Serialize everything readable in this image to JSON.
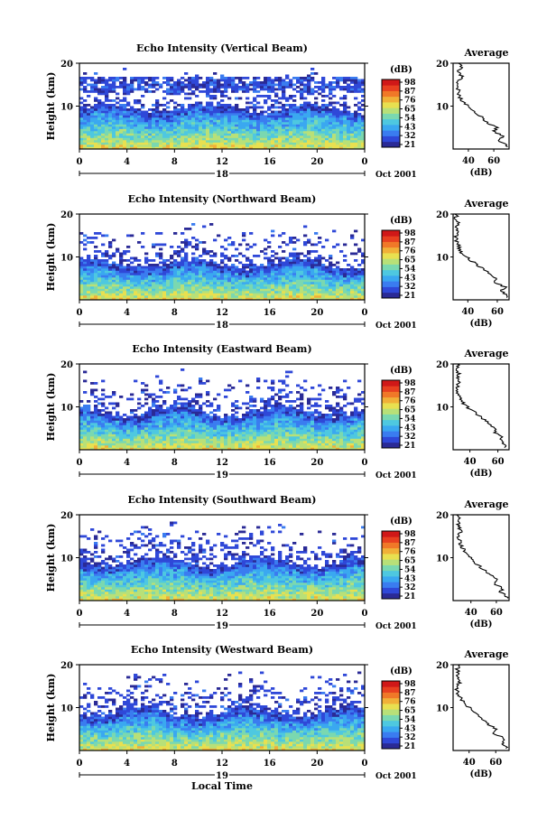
{
  "chart_data": [
    {
      "type": "heatmap",
      "title": "Echo Intensity (Vertical Beam)",
      "ylabel": "Height (km)",
      "yticks": [
        "20",
        "10"
      ],
      "ylim": [
        0,
        20
      ],
      "xticks": [
        "0",
        "4",
        "8",
        "12",
        "16",
        "20",
        "0"
      ],
      "xlim": [
        0,
        24
      ],
      "date_day": "18",
      "date_month_year": "Oct 2001",
      "colorbar": {
        "unit": "(dB)",
        "labels": [
          "98",
          "87",
          "76",
          "65",
          "54",
          "43",
          "32",
          "21"
        ]
      },
      "layers": {
        "cloud_top_km": 20,
        "dense_top_km": 9.5,
        "mid_layer_km": [
          13,
          17
        ]
      },
      "profile": {
        "title": "Average",
        "xlabel": "(dB)",
        "xticks": [
          "40",
          "60"
        ],
        "xlim": [
          28,
          72
        ],
        "heights": [
          1,
          2,
          3,
          4,
          5,
          6,
          7,
          8,
          9,
          10,
          11,
          12,
          13,
          14,
          15,
          16,
          17,
          18,
          19,
          20
        ],
        "values": [
          70,
          64,
          68,
          60,
          62,
          56,
          52,
          48,
          44,
          40,
          36,
          33,
          32,
          32,
          31,
          33,
          35,
          32,
          34,
          33
        ]
      }
    },
    {
      "type": "heatmap",
      "title": "Echo Intensity (Northward Beam)",
      "ylabel": "Height (km)",
      "yticks": [
        "20",
        "10"
      ],
      "ylim": [
        0,
        20
      ],
      "xticks": [
        "0",
        "4",
        "8",
        "12",
        "16",
        "20",
        "0"
      ],
      "xlim": [
        0,
        24
      ],
      "date_day": "18",
      "date_month_year": "Oct 2001",
      "colorbar": {
        "unit": "(dB)",
        "labels": [
          "98",
          "87",
          "76",
          "65",
          "54",
          "43",
          "32",
          "21"
        ]
      },
      "layers": {
        "cloud_top_km": 18,
        "dense_top_km": 8.5,
        "mid_layer_km": null
      },
      "profile": {
        "title": "Average",
        "xlabel": "(dB)",
        "xticks": [
          "40",
          "60"
        ],
        "xlim": [
          30,
          68
        ],
        "heights": [
          1,
          2,
          3,
          4,
          5,
          6,
          7,
          8,
          9,
          10,
          11,
          12,
          13,
          14,
          15,
          16,
          17,
          18,
          19,
          20
        ],
        "values": [
          66,
          63,
          65,
          59,
          60,
          55,
          51,
          47,
          43,
          39,
          36,
          34,
          33,
          32,
          32,
          33,
          32,
          33,
          32,
          32
        ]
      }
    },
    {
      "type": "heatmap",
      "title": "Echo Intensity (Eastward Beam)",
      "ylabel": "Height (km)",
      "yticks": [
        "20",
        "10"
      ],
      "ylim": [
        0,
        20
      ],
      "xticks": [
        "0",
        "4",
        "8",
        "12",
        "16",
        "20",
        "0"
      ],
      "xlim": [
        0,
        24
      ],
      "date_day": "19",
      "date_month_year": "Oct 2001",
      "colorbar": {
        "unit": "(dB)",
        "labels": [
          "98",
          "87",
          "76",
          "65",
          "54",
          "43",
          "32",
          "21"
        ]
      },
      "layers": {
        "cloud_top_km": 19,
        "dense_top_km": 9,
        "mid_layer_km": null
      },
      "profile": {
        "title": "Average",
        "xlabel": "(dB)",
        "xticks": [
          "40",
          "60"
        ],
        "xlim": [
          28,
          68
        ],
        "heights": [
          1,
          2,
          3,
          4,
          5,
          6,
          7,
          8,
          9,
          10,
          11,
          12,
          13,
          14,
          15,
          16,
          17,
          18,
          19,
          20
        ],
        "values": [
          66,
          62,
          64,
          58,
          59,
          54,
          50,
          46,
          42,
          38,
          35,
          33,
          32,
          31,
          31,
          32,
          31,
          32,
          31,
          32
        ]
      }
    },
    {
      "type": "heatmap",
      "title": "Echo Intensity (Southward Beam)",
      "ylabel": "Height (km)",
      "yticks": [
        "20",
        "10"
      ],
      "ylim": [
        0,
        20
      ],
      "xticks": [
        "0",
        "4",
        "8",
        "12",
        "16",
        "20",
        "0"
      ],
      "xlim": [
        0,
        24
      ],
      "date_day": "19",
      "date_month_year": "Oct 2001",
      "colorbar": {
        "unit": "(dB)",
        "labels": [
          "98",
          "87",
          "76",
          "65",
          "54",
          "43",
          "32",
          "21"
        ]
      },
      "layers": {
        "cloud_top_km": 19,
        "dense_top_km": 9,
        "mid_layer_km": null
      },
      "profile": {
        "title": "Average",
        "xlabel": "(dB)",
        "xticks": [
          "40",
          "60"
        ],
        "xlim": [
          26,
          70
        ],
        "heights": [
          1,
          2,
          3,
          4,
          5,
          6,
          7,
          8,
          9,
          10,
          11,
          12,
          13,
          14,
          15,
          16,
          17,
          18,
          19,
          20
        ],
        "values": [
          68,
          63,
          65,
          58,
          60,
          55,
          51,
          47,
          43,
          40,
          37,
          34,
          32,
          31,
          30,
          32,
          31,
          30,
          31,
          30
        ]
      }
    },
    {
      "type": "heatmap",
      "title": "Echo Intensity (Westward Beam)",
      "ylabel": "Height (km)",
      "yticks": [
        "20",
        "10"
      ],
      "ylim": [
        0,
        20
      ],
      "xticks": [
        "0",
        "4",
        "8",
        "12",
        "16",
        "20",
        "0"
      ],
      "xlim": [
        0,
        24
      ],
      "xlabel": "Local Time",
      "date_day": "19",
      "date_month_year": "Oct 2001",
      "colorbar": {
        "unit": "(dB)",
        "labels": [
          "98",
          "87",
          "76",
          "65",
          "54",
          "43",
          "32",
          "21"
        ]
      },
      "layers": {
        "cloud_top_km": 19,
        "dense_top_km": 9,
        "mid_layer_km": null
      },
      "profile": {
        "title": "Average",
        "xlabel": "(dB)",
        "xticks": [
          "40",
          "60"
        ],
        "xlim": [
          28,
          70
        ],
        "heights": [
          1,
          2,
          3,
          4,
          5,
          6,
          7,
          8,
          9,
          10,
          11,
          12,
          13,
          14,
          15,
          16,
          17,
          18,
          19,
          20
        ],
        "values": [
          68,
          64,
          66,
          59,
          60,
          55,
          51,
          47,
          43,
          40,
          36,
          34,
          32,
          31,
          31,
          33,
          31,
          32,
          31,
          33
        ]
      }
    }
  ],
  "colormap": [
    "#2a2a96",
    "#2f48d8",
    "#3a7cf0",
    "#3aa8f0",
    "#4ec8e0",
    "#7ad8b0",
    "#b8e078",
    "#e8e050",
    "#f0b038",
    "#f07828",
    "#e84020",
    "#d01818"
  ]
}
